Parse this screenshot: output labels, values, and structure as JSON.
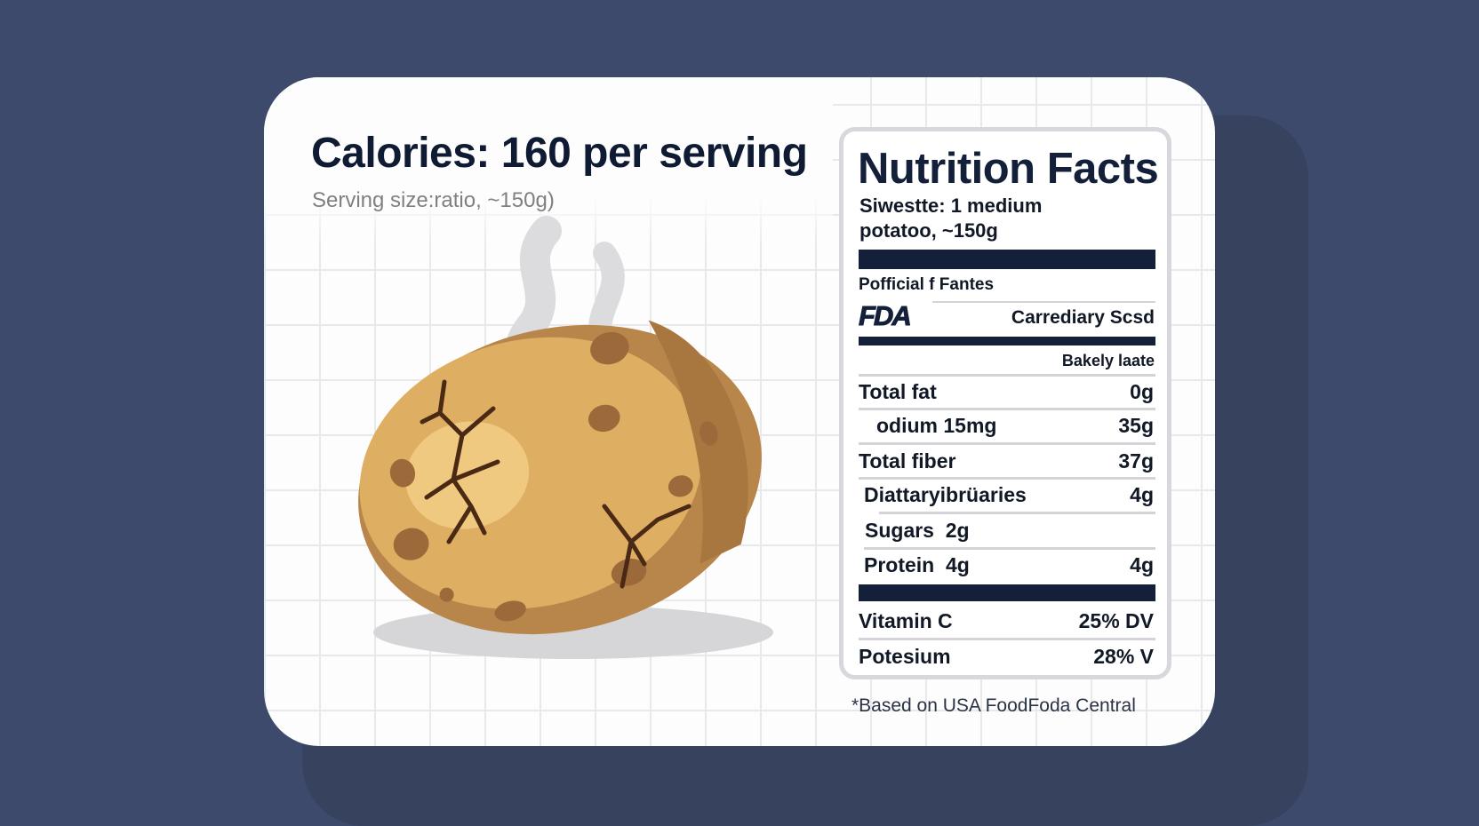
{
  "header": {
    "title": "Calories: 160 per serving",
    "subtitle": "Serving size:ratio, ~150g)"
  },
  "illustration": {
    "subject": "baked-potato-icon",
    "steam": "steam-icon"
  },
  "label": {
    "title": "Nutrition Facts",
    "serving_line1": "Siwestte: 1 medium",
    "serving_line2": "potatoo, ~150g",
    "official": "Pofficial f Fantes",
    "logo": "FDA",
    "logo_caption": "Carrediary Scsd",
    "section": "Bakely laate",
    "rows": [
      {
        "name": "Total fat",
        "value": "0g"
      },
      {
        "name": "odium 15mg",
        "value": "35g"
      },
      {
        "name": "Total fiber",
        "value": "37g"
      },
      {
        "name": "Diattaryibrüaries",
        "value": "4g"
      },
      {
        "name": "Sugars  2g",
        "value": ""
      },
      {
        "name": "Protein  4g",
        "value": "4g"
      }
    ],
    "vitamins": [
      {
        "name": "Vitamin C",
        "value": "25% DV"
      },
      {
        "name": "Potesium",
        "value": "28% V"
      }
    ]
  },
  "footnote": "*Based on USA FoodFoda Central",
  "colors": {
    "background": "#3e4a6c",
    "ink": "#14203a",
    "potato": "#d9a75a"
  }
}
